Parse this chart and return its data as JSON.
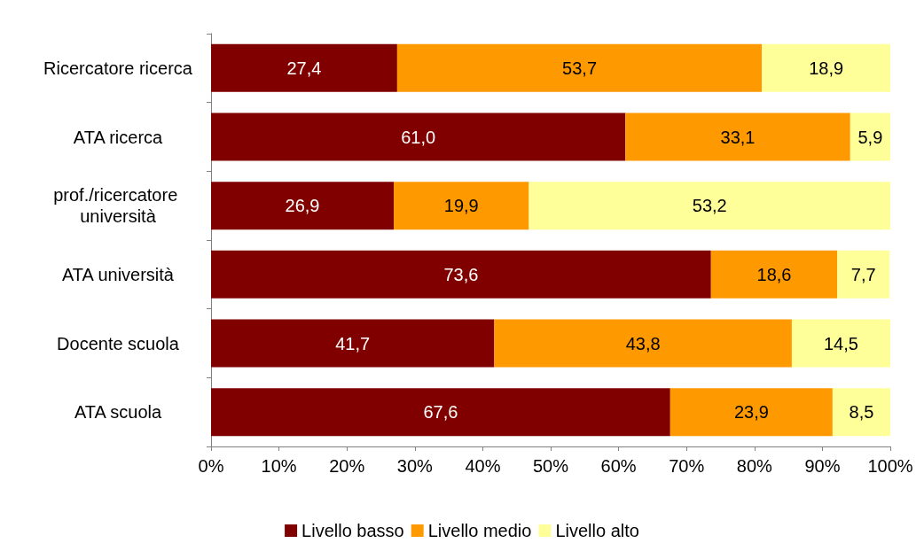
{
  "chart_data": {
    "type": "bar",
    "orientation": "horizontal",
    "stacked": true,
    "categories": [
      "Ricercatore ricerca",
      "ATA ricerca",
      "prof./ricercatore università",
      "ATA università",
      "Docente scuola",
      "ATA scuola"
    ],
    "series": [
      {
        "name": "Livello basso",
        "color": "#800000",
        "values": [
          27.4,
          61.0,
          26.9,
          73.6,
          41.7,
          67.6
        ],
        "value_labels": [
          "27,4",
          "61,0",
          "26,9",
          "73,6",
          "41,7",
          "67,6"
        ]
      },
      {
        "name": "Livello medio",
        "color": "#ff9900",
        "values": [
          53.7,
          33.1,
          19.9,
          18.6,
          43.8,
          23.9
        ],
        "value_labels": [
          "53,7",
          "33,1",
          "19,9",
          "18,6",
          "43,8",
          "23,9"
        ]
      },
      {
        "name": "Livello alto",
        "color": "#ffff99",
        "values": [
          18.9,
          5.9,
          53.2,
          7.7,
          14.5,
          8.5
        ],
        "value_labels": [
          "18,9",
          "5,9",
          "53,2",
          "7,7",
          "14,5",
          "8,5"
        ]
      }
    ],
    "xlim": [
      0,
      100
    ],
    "xticks": [
      {
        "value": 0,
        "label": "0%"
      },
      {
        "value": 10,
        "label": "10%"
      },
      {
        "value": 20,
        "label": "20%"
      },
      {
        "value": 30,
        "label": "30%"
      },
      {
        "value": 40,
        "label": "40%"
      },
      {
        "value": 50,
        "label": "50%"
      },
      {
        "value": 60,
        "label": "60%"
      },
      {
        "value": 70,
        "label": "70%"
      },
      {
        "value": 80,
        "label": "80%"
      },
      {
        "value": 90,
        "label": "90%"
      },
      {
        "value": 100,
        "label": "100%"
      }
    ],
    "legend": "bottom"
  }
}
